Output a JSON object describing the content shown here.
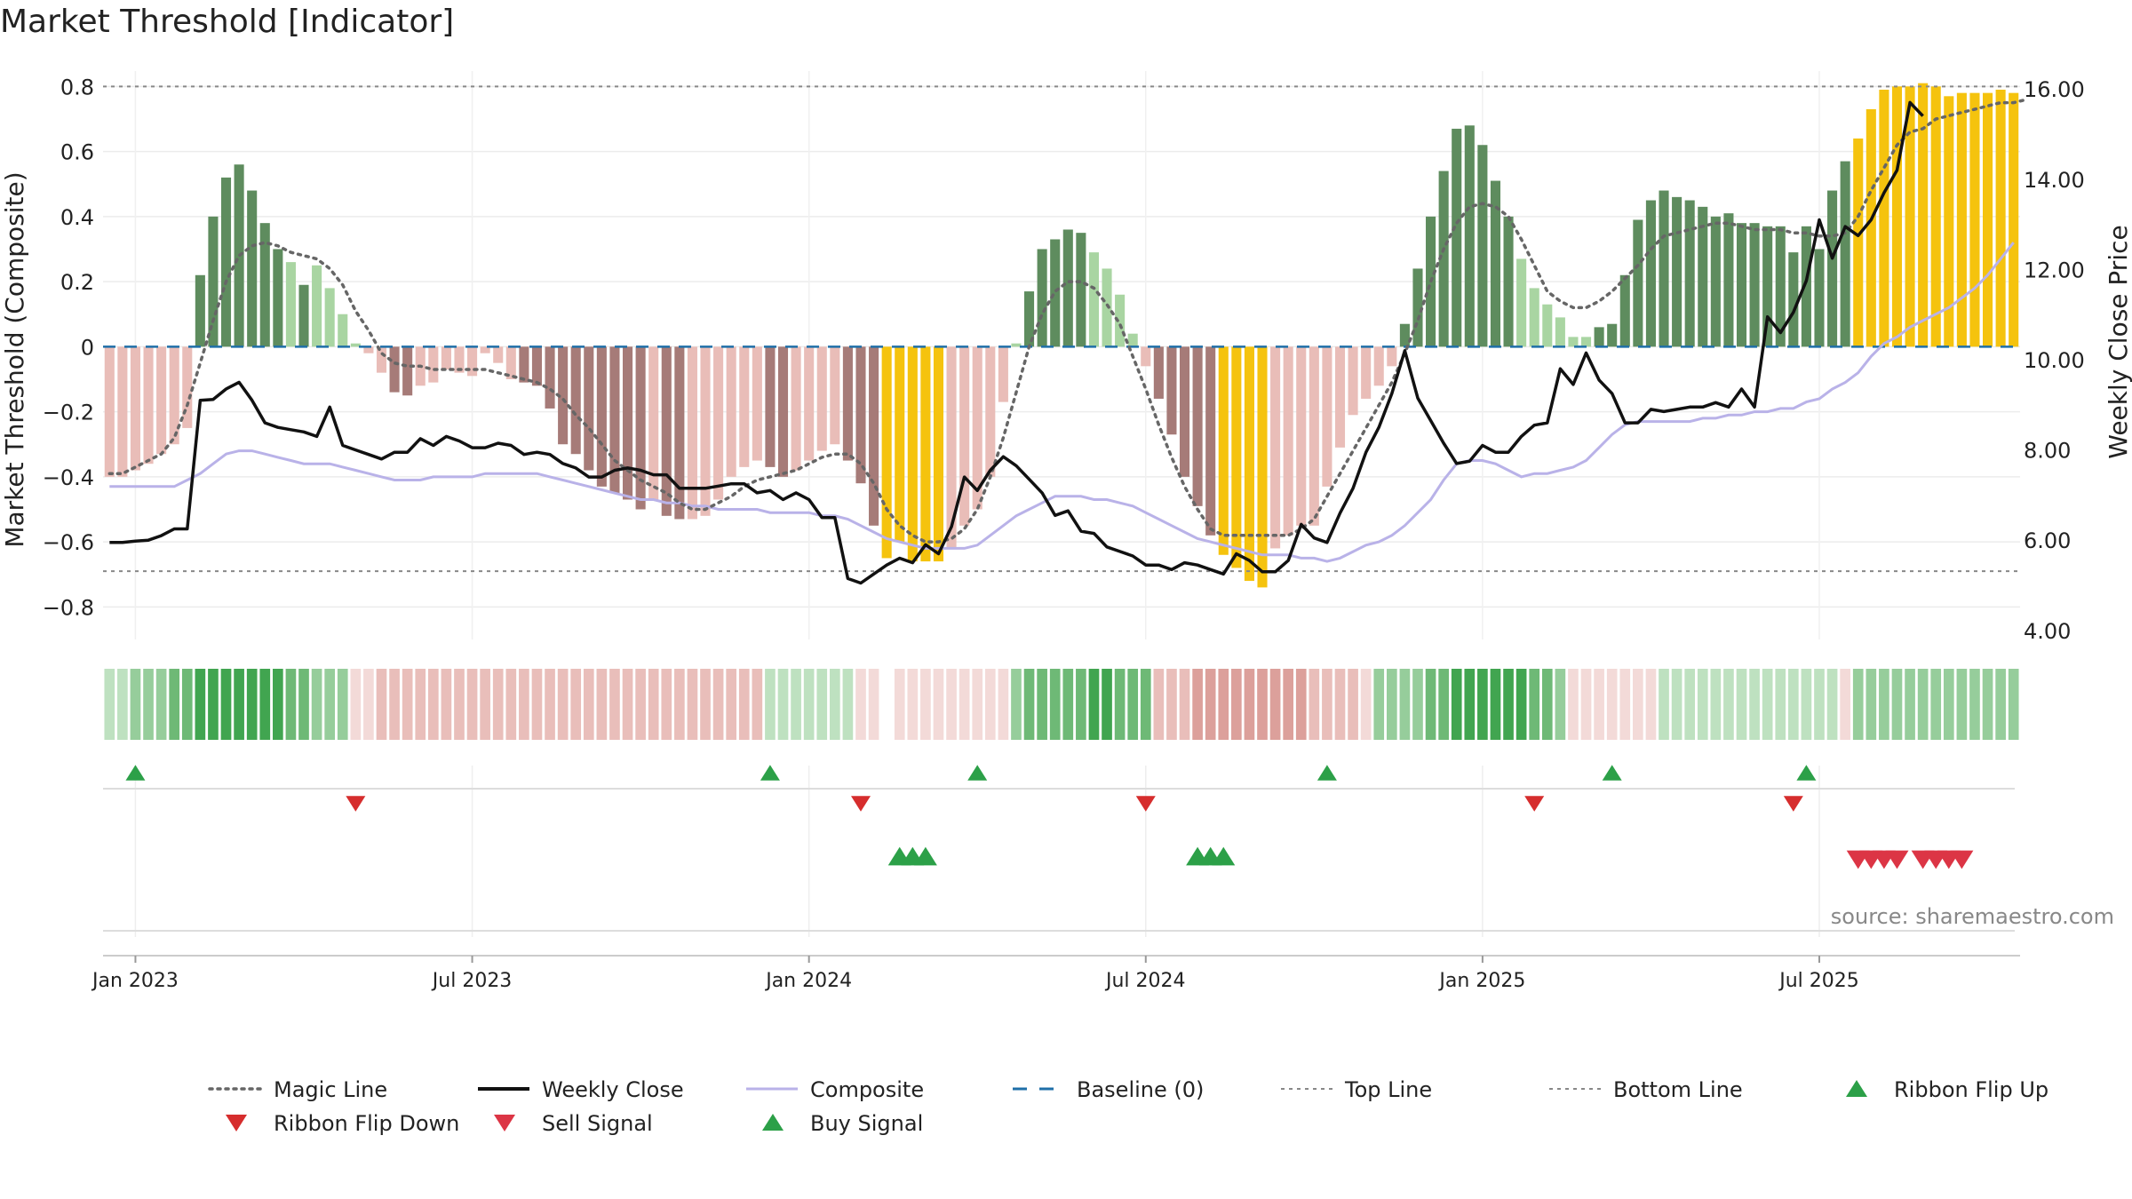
{
  "title": "Market Threshold [Indicator]",
  "source": "source: sharemaestro.com",
  "colors": {
    "bar_dark_green": "#5e8c5e",
    "bar_light_green": "#a9d5a2",
    "bar_dark_red": "#a67b78",
    "bar_light_red": "#e9bdb8",
    "bar_gold": "#f5c30e",
    "weekly_close": "#111111",
    "magic_line": "#666666",
    "composite": "#b9b2e8",
    "baseline": "#1f6fa8",
    "threshold_line": "#888888",
    "flip_up": "#2ca048",
    "flip_down": "#d62d2d",
    "sell": "#dc3545",
    "buy": "#2ca048"
  },
  "chart_data": {
    "type": "bar",
    "title": "Market Threshold [Indicator]",
    "ylabel": "Market Threshold (Composite)",
    "y2label": "Weekly Close Price",
    "ylim": [
      -0.9,
      0.82
    ],
    "y2lim": [
      3.8,
      16.2
    ],
    "y_ticks": [
      {
        "v": 0.8,
        "label": "0.8"
      },
      {
        "v": 0.6,
        "label": "0.6"
      },
      {
        "v": 0.4,
        "label": "0.4"
      },
      {
        "v": 0.2,
        "label": "0.2"
      },
      {
        "v": 0,
        "label": "0"
      },
      {
        "v": -0.2,
        "label": "−0.2"
      },
      {
        "v": -0.4,
        "label": "−0.4"
      },
      {
        "v": -0.6,
        "label": "−0.6"
      },
      {
        "v": -0.8,
        "label": "−0.8"
      }
    ],
    "y2_ticks": [
      {
        "v": 16,
        "label": "16.00"
      },
      {
        "v": 14,
        "label": "14.00"
      },
      {
        "v": 12,
        "label": "12.00"
      },
      {
        "v": 10,
        "label": "10.00"
      },
      {
        "v": 8,
        "label": "8.00"
      },
      {
        "v": 6,
        "label": "6.00"
      },
      {
        "v": 4,
        "label": "4.00"
      }
    ],
    "x_ticks": [
      {
        "i": 2,
        "label": "Jan 2023"
      },
      {
        "i": 28,
        "label": "Jul 2023"
      },
      {
        "i": 54,
        "label": "Jan 2024"
      },
      {
        "i": 80,
        "label": "Jul 2024"
      },
      {
        "i": 106,
        "label": "Jan 2025"
      },
      {
        "i": 132,
        "label": "Jul 2025"
      }
    ],
    "top_line": 0.8,
    "bottom_line": -0.69,
    "baseline": 0,
    "series": [
      {
        "name": "Composite Bars",
        "values": [
          -0.4,
          -0.4,
          -0.38,
          -0.36,
          -0.33,
          -0.3,
          -0.25,
          0.22,
          0.4,
          0.52,
          0.56,
          0.48,
          0.38,
          0.3,
          0.26,
          0.19,
          0.25,
          0.18,
          0.1,
          0.01,
          -0.02,
          -0.08,
          -0.14,
          -0.15,
          -0.12,
          -0.11,
          -0.07,
          -0.08,
          -0.09,
          -0.02,
          -0.05,
          -0.1,
          -0.11,
          -0.12,
          -0.19,
          -0.3,
          -0.33,
          -0.38,
          -0.43,
          -0.45,
          -0.47,
          -0.5,
          -0.47,
          -0.52,
          -0.53,
          -0.53,
          -0.52,
          -0.47,
          -0.4,
          -0.37,
          -0.35,
          -0.37,
          -0.4,
          -0.38,
          -0.35,
          -0.32,
          -0.3,
          -0.35,
          -0.42,
          -0.55,
          -0.65,
          -0.6,
          -0.66,
          -0.66,
          -0.66,
          -0.62,
          -0.55,
          -0.5,
          -0.4,
          -0.17,
          0.01,
          0.17,
          0.3,
          0.33,
          0.36,
          0.35,
          0.29,
          0.24,
          0.16,
          0.04,
          -0.06,
          -0.16,
          -0.27,
          -0.4,
          -0.49,
          -0.58,
          -0.64,
          -0.68,
          -0.72,
          -0.74,
          -0.62,
          -0.58,
          -0.55,
          -0.55,
          -0.43,
          -0.31,
          -0.21,
          -0.16,
          -0.12,
          -0.06,
          0.07,
          0.24,
          0.4,
          0.54,
          0.67,
          0.68,
          0.62,
          0.51,
          0.4,
          0.27,
          0.18,
          0.13,
          0.09,
          0.03,
          0.03,
          0.06,
          0.07,
          0.22,
          0.39,
          0.45,
          0.48,
          0.46,
          0.45,
          0.43,
          0.4,
          0.41,
          0.38,
          0.38,
          0.37,
          0.37,
          0.29,
          0.37,
          0.3,
          0.48,
          0.57,
          0.64,
          0.73,
          0.79,
          0.8,
          0.8,
          0.81,
          0.8,
          0.77,
          0.78,
          0.78,
          0.78,
          0.79,
          0.78
        ]
      },
      {
        "name": "Magic Line",
        "values": [
          -0.39,
          -0.39,
          -0.37,
          -0.35,
          -0.33,
          -0.28,
          -0.18,
          -0.05,
          0.08,
          0.2,
          0.28,
          0.31,
          0.32,
          0.31,
          0.29,
          0.28,
          0.27,
          0.24,
          0.19,
          0.11,
          0.05,
          -0.02,
          -0.05,
          -0.06,
          -0.06,
          -0.07,
          -0.07,
          -0.07,
          -0.07,
          -0.07,
          -0.08,
          -0.09,
          -0.1,
          -0.11,
          -0.13,
          -0.16,
          -0.21,
          -0.25,
          -0.3,
          -0.35,
          -0.38,
          -0.41,
          -0.43,
          -0.45,
          -0.48,
          -0.5,
          -0.5,
          -0.48,
          -0.46,
          -0.43,
          -0.41,
          -0.4,
          -0.39,
          -0.38,
          -0.36,
          -0.34,
          -0.33,
          -0.33,
          -0.36,
          -0.42,
          -0.5,
          -0.55,
          -0.58,
          -0.6,
          -0.6,
          -0.59,
          -0.56,
          -0.5,
          -0.4,
          -0.28,
          -0.14,
          0,
          0.1,
          0.17,
          0.2,
          0.2,
          0.18,
          0.13,
          0.07,
          -0.03,
          -0.13,
          -0.24,
          -0.34,
          -0.43,
          -0.5,
          -0.56,
          -0.58,
          -0.58,
          -0.58,
          -0.58,
          -0.58,
          -0.58,
          -0.56,
          -0.53,
          -0.46,
          -0.39,
          -0.32,
          -0.25,
          -0.18,
          -0.11,
          -0.02,
          0.08,
          0.2,
          0.3,
          0.38,
          0.43,
          0.44,
          0.43,
          0.4,
          0.33,
          0.25,
          0.17,
          0.14,
          0.12,
          0.12,
          0.14,
          0.17,
          0.21,
          0.25,
          0.3,
          0.34,
          0.35,
          0.36,
          0.37,
          0.38,
          0.38,
          0.37,
          0.36,
          0.36,
          0.36,
          0.35,
          0.35,
          0.34,
          0.34,
          0.35,
          0.4,
          0.48,
          0.55,
          0.62,
          0.66,
          0.67,
          0.7,
          0.71,
          0.72,
          0.73,
          0.74,
          0.75,
          0.75,
          0.76
        ]
      },
      {
        "name": "Weekly Close",
        "values": [
          5.95,
          5.95,
          5.98,
          6,
          6.1,
          6.25,
          6.25,
          9.1,
          9.12,
          9.35,
          9.5,
          9.1,
          8.6,
          8.5,
          8.45,
          8.4,
          8.3,
          8.95,
          8.1,
          8,
          7.9,
          7.8,
          7.95,
          7.95,
          8.25,
          8.1,
          8.3,
          8.2,
          8.05,
          8.05,
          8.15,
          8.1,
          7.9,
          7.95,
          7.9,
          7.7,
          7.6,
          7.4,
          7.4,
          7.55,
          7.6,
          7.55,
          7.45,
          7.45,
          7.15,
          7.15,
          7.15,
          7.2,
          7.25,
          7.25,
          7.05,
          7.1,
          6.9,
          7.05,
          6.9,
          6.5,
          6.5,
          5.15,
          5.05,
          5.25,
          5.45,
          5.6,
          5.5,
          5.9,
          5.7,
          6.3,
          7.4,
          7.1,
          7.55,
          7.85,
          7.65,
          7.35,
          7.05,
          6.55,
          6.65,
          6.2,
          6.15,
          5.85,
          5.75,
          5.65,
          5.45,
          5.45,
          5.35,
          5.5,
          5.45,
          5.35,
          5.25,
          5.7,
          5.55,
          5.3,
          5.3,
          5.55,
          6.35,
          6.05,
          5.95,
          6.6,
          7.15,
          7.95,
          8.5,
          9.25,
          10.2,
          9.15,
          8.65,
          8.15,
          7.7,
          7.75,
          8.1,
          7.95,
          7.95,
          8.3,
          8.55,
          8.6,
          9.8,
          9.45,
          10.15,
          9.55,
          9.25,
          8.6,
          8.6,
          8.9,
          8.85,
          8.9,
          8.95,
          8.95,
          9.05,
          8.95,
          9.35,
          8.95,
          10.95,
          10.6,
          11.05,
          11.75,
          13.1,
          12.25,
          12.95,
          12.75,
          13.1,
          13.7,
          14.2,
          15.7,
          15.4
        ]
      },
      {
        "name": "Composite",
        "values": [
          -0.43,
          -0.43,
          -0.43,
          -0.43,
          -0.43,
          -0.43,
          -0.41,
          -0.39,
          -0.36,
          -0.33,
          -0.32,
          -0.32,
          -0.33,
          -0.34,
          -0.35,
          -0.36,
          -0.36,
          -0.36,
          -0.37,
          -0.38,
          -0.39,
          -0.4,
          -0.41,
          -0.41,
          -0.41,
          -0.4,
          -0.4,
          -0.4,
          -0.4,
          -0.39,
          -0.39,
          -0.39,
          -0.39,
          -0.39,
          -0.4,
          -0.41,
          -0.42,
          -0.43,
          -0.44,
          -0.45,
          -0.46,
          -0.47,
          -0.47,
          -0.48,
          -0.48,
          -0.49,
          -0.49,
          -0.5,
          -0.5,
          -0.5,
          -0.5,
          -0.51,
          -0.51,
          -0.51,
          -0.51,
          -0.52,
          -0.52,
          -0.53,
          -0.55,
          -0.57,
          -0.59,
          -0.6,
          -0.61,
          -0.62,
          -0.62,
          -0.62,
          -0.62,
          -0.61,
          -0.58,
          -0.55,
          -0.52,
          -0.5,
          -0.48,
          -0.46,
          -0.46,
          -0.46,
          -0.47,
          -0.47,
          -0.48,
          -0.49,
          -0.51,
          -0.53,
          -0.55,
          -0.57,
          -0.59,
          -0.6,
          -0.61,
          -0.62,
          -0.63,
          -0.64,
          -0.64,
          -0.64,
          -0.65,
          -0.65,
          -0.66,
          -0.65,
          -0.63,
          -0.61,
          -0.6,
          -0.58,
          -0.55,
          -0.51,
          -0.47,
          -0.41,
          -0.36,
          -0.35,
          -0.35,
          -0.36,
          -0.38,
          -0.4,
          -0.39,
          -0.39,
          -0.38,
          -0.37,
          -0.35,
          -0.31,
          -0.27,
          -0.24,
          -0.23,
          -0.23,
          -0.23,
          -0.23,
          -0.23,
          -0.22,
          -0.22,
          -0.21,
          -0.21,
          -0.2,
          -0.2,
          -0.19,
          -0.19,
          -0.17,
          -0.16,
          -0.13,
          -0.11,
          -0.08,
          -0.03,
          0.01,
          0.03,
          0.06,
          0.08,
          0.1,
          0.12,
          0.15,
          0.18,
          0.22,
          0.27,
          0.32
        ]
      }
    ],
    "ribbon": [
      0.25,
      0.35,
      0.45,
      0.5,
      0.55,
      0.6,
      0.7,
      0.8,
      0.9,
      0.95,
      1,
      1,
      0.9,
      0.8,
      0.7,
      0.6,
      0.55,
      0.5,
      0.45,
      -0.35,
      -0.35,
      -0.4,
      -0.4,
      -0.4,
      -0.4,
      -0.4,
      -0.4,
      -0.4,
      -0.4,
      -0.4,
      -0.4,
      -0.4,
      -0.4,
      -0.4,
      -0.4,
      -0.4,
      -0.4,
      -0.4,
      -0.4,
      -0.4,
      -0.4,
      -0.4,
      -0.4,
      -0.4,
      -0.4,
      -0.4,
      -0.4,
      -0.4,
      -0.4,
      -0.4,
      -0.4,
      0.25,
      0.25,
      0.25,
      0.25,
      0.25,
      0.25,
      0.25,
      -0.3,
      -0.3,
      null,
      -0.35,
      -0.35,
      -0.35,
      -0.35,
      -0.35,
      -0.35,
      -0.35,
      -0.35,
      -0.35,
      0.55,
      0.6,
      0.6,
      0.65,
      0.7,
      0.75,
      0.8,
      0.8,
      0.75,
      0.7,
      0.65,
      -0.45,
      -0.5,
      -0.55,
      -0.6,
      -0.65,
      -0.7,
      -0.7,
      -0.7,
      -0.7,
      -0.7,
      -0.65,
      -0.6,
      -0.55,
      -0.5,
      -0.45,
      -0.4,
      -0.35,
      0.4,
      0.45,
      0.5,
      0.55,
      0.6,
      0.7,
      0.8,
      0.9,
      1,
      1,
      0.9,
      0.8,
      0.7,
      0.6,
      0.5,
      -0.3,
      -0.3,
      -0.3,
      -0.3,
      -0.3,
      -0.3,
      -0.3,
      0.25,
      0.25,
      0.25,
      0.25,
      0.25,
      0.25,
      0.25,
      0.25,
      0.25,
      0.25,
      0.25,
      0.25,
      0.25,
      0.25,
      -0.2,
      0.4,
      0.4,
      0.4,
      0.4,
      0.4,
      0.4,
      0.4,
      0.4,
      0.4,
      0.4,
      0.4,
      0.4,
      0.4
    ],
    "ribbon_flip_up": [
      2,
      51,
      67,
      94,
      116,
      131
    ],
    "ribbon_flip_down": [
      19,
      58,
      80,
      110,
      130
    ],
    "buy_signals": [
      61,
      62,
      63,
      84,
      85,
      86
    ],
    "sell_signals": [
      135,
      136,
      137,
      138,
      140,
      141,
      142,
      143
    ]
  },
  "legend": [
    {
      "label": "Magic Line",
      "kind": "dotted",
      "color": "#666666"
    },
    {
      "label": "Weekly Close",
      "kind": "solid",
      "color": "#111111"
    },
    {
      "label": "Composite",
      "kind": "solid-thin",
      "color": "#b9b2e8"
    },
    {
      "label": "Baseline (0)",
      "kind": "dashed",
      "color": "#1f6fa8"
    },
    {
      "label": "Top Line",
      "kind": "fine-dotted",
      "color": "#888888"
    },
    {
      "label": "Bottom Line",
      "kind": "fine-dotted",
      "color": "#888888"
    },
    {
      "label": "Ribbon Flip Up",
      "kind": "tri-up",
      "color": "#2ca048"
    },
    {
      "label": "Ribbon Flip Down",
      "kind": "tri-down",
      "color": "#d62d2d"
    },
    {
      "label": "Sell Signal",
      "kind": "tri-down",
      "color": "#dc3545"
    },
    {
      "label": "Buy Signal",
      "kind": "tri-up",
      "color": "#2ca048"
    }
  ]
}
